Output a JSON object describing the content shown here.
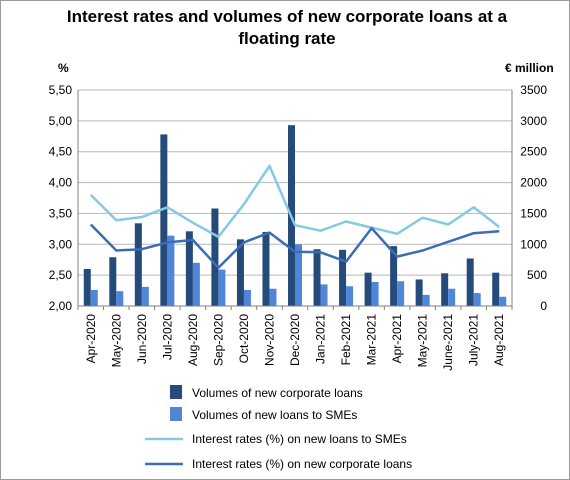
{
  "chart_data": {
    "type": "bar+line",
    "title_lines": [
      "Interest rates and volumes of new corporate loans at a",
      "floating rate"
    ],
    "y_left_unit": "%",
    "y_right_unit": "€ million",
    "y_left_range": [
      2.0,
      5.5
    ],
    "y_left_ticks": [
      "2,00",
      "2,50",
      "3,00",
      "3,50",
      "4,00",
      "4,50",
      "5,00",
      "5,50"
    ],
    "y_right_range": [
      0,
      3500
    ],
    "y_right_ticks": [
      "0",
      "500",
      "1000",
      "1500",
      "2000",
      "2500",
      "3000",
      "3500"
    ],
    "grid": true,
    "legend_position": "bottom",
    "categories": [
      "Apr-2020",
      "May-2020",
      "Jun-2020",
      "Jul-2020",
      "Aug-2020",
      "Sep-2020",
      "Oct-2020",
      "Nov-2020",
      "Dec-2020",
      "Jan-2021",
      "Feb-2021",
      "Mar-2021",
      "Apr-2021",
      "May-2021",
      "June-2021",
      "July-2021",
      "Aug-2021"
    ],
    "series": [
      {
        "name": "Volumes of new corporate loans",
        "kind": "bar",
        "axis": "right",
        "color": "#254b7a",
        "values": [
          600,
          790,
          1340,
          2780,
          1210,
          1580,
          1080,
          1200,
          2930,
          920,
          910,
          540,
          970,
          430,
          530,
          770,
          540
        ]
      },
      {
        "name": "Volumes of new loans to SMEs",
        "kind": "bar",
        "axis": "right",
        "color": "#4f86d8",
        "values": [
          260,
          240,
          310,
          1140,
          700,
          590,
          260,
          280,
          1000,
          350,
          320,
          390,
          400,
          180,
          280,
          210,
          150
        ]
      },
      {
        "name": "Interest rates (%) on new loans to SMEs",
        "kind": "line",
        "axis": "left",
        "color": "#86c9e2",
        "values": [
          3.8,
          3.39,
          3.44,
          3.6,
          3.35,
          3.12,
          3.65,
          4.27,
          3.31,
          3.22,
          3.37,
          3.27,
          3.17,
          3.43,
          3.32,
          3.6,
          3.28
        ]
      },
      {
        "name": "Interest rates (%) on new corporate loans",
        "kind": "line",
        "axis": "left",
        "color": "#3a6db4",
        "values": [
          3.32,
          2.9,
          2.92,
          3.03,
          3.07,
          2.62,
          3.03,
          3.19,
          2.88,
          2.87,
          2.72,
          3.26,
          2.8,
          2.9,
          3.04,
          3.18,
          3.21
        ]
      }
    ]
  }
}
